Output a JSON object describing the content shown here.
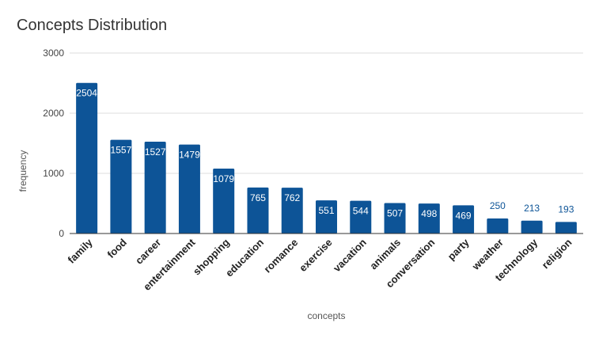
{
  "chart_data": {
    "type": "bar",
    "title": "Concepts Distribution",
    "xlabel": "concepts",
    "ylabel": "frequency",
    "categories": [
      "family",
      "food",
      "career",
      "entertainment",
      "shopping",
      "education",
      "romance",
      "exercise",
      "vacation",
      "animals",
      "conversation",
      "party",
      "weather",
      "technology",
      "religion"
    ],
    "values": [
      2504,
      1557,
      1527,
      1479,
      1079,
      765,
      762,
      551,
      544,
      507,
      498,
      469,
      250,
      213,
      193
    ],
    "ylim": [
      0,
      3000
    ],
    "yticks": [
      0,
      1000,
      2000,
      3000
    ],
    "grid": true,
    "legend": "none",
    "colors": {
      "bar": "#0d5497",
      "label_outside": "#0d5497",
      "label_inside": "#ffffff",
      "grid": "#dddddd",
      "axis": "#333333"
    }
  }
}
